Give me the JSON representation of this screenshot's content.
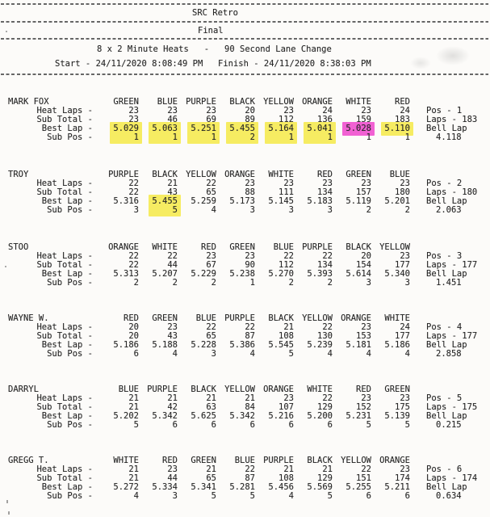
{
  "header": {
    "title": "SRC Retro",
    "subtitle": "Final",
    "format_line": "8 x 2 Minute Heats   -   90 Second Lane Change",
    "start_text": "Start - 24/11/2020 8:08:49 PM",
    "finish_text": "Finish - 24/11/2020 8:38:03 PM"
  },
  "row_labels": {
    "heat_laps": "Heat Laps -",
    "sub_total": "Sub Total -",
    "best_lap": "Best Lap -",
    "sub_pos": "Sub Pos -"
  },
  "highlight_colors": {
    "yellow": "#f6ec62",
    "pink": "#f161d3"
  },
  "racers": [
    {
      "name": "MARK FOX",
      "colors": [
        "GREEN",
        "BLUE",
        "PURPLE",
        "BLACK",
        "YELLOW",
        "ORANGE",
        "WHITE",
        "RED"
      ],
      "heat_laps": [
        "23",
        "23",
        "23",
        "20",
        "23",
        "24",
        "23",
        "24"
      ],
      "sub_total": [
        "23",
        "46",
        "69",
        "89",
        "112",
        "136",
        "159",
        "183"
      ],
      "best_lap": [
        "5.029",
        "5.063",
        "5.251",
        "5.455",
        "5.164",
        "5.041",
        "5.028",
        "5.110"
      ],
      "sub_pos": [
        "1",
        "1",
        "1",
        "2",
        "1",
        "1",
        "1",
        "1"
      ],
      "pos_text": "Pos - 1",
      "laps_text": "Laps - 183",
      "bell_lap_label": "Bell Lap",
      "bell_lap_value": "4.118",
      "best_lap_highlight": [
        "yellow-bleed",
        "yellow-bleed",
        "yellow-bleed",
        "yellow-bleed",
        "yellow-bleed",
        "yellow-bleed",
        "pink",
        "yellow"
      ]
    },
    {
      "name": "TROY",
      "colors": [
        "PURPLE",
        "BLACK",
        "YELLOW",
        "ORANGE",
        "WHITE",
        "RED",
        "GREEN",
        "BLUE"
      ],
      "heat_laps": [
        "22",
        "21",
        "22",
        "23",
        "23",
        "23",
        "23",
        "23"
      ],
      "sub_total": [
        "22",
        "43",
        "65",
        "88",
        "111",
        "134",
        "157",
        "180"
      ],
      "best_lap": [
        "5.316",
        "5.455",
        "5.259",
        "5.173",
        "5.145",
        "5.183",
        "5.119",
        "5.201"
      ],
      "sub_pos": [
        "3",
        "5",
        "4",
        "3",
        "3",
        "3",
        "2",
        "2"
      ],
      "pos_text": "Pos - 2",
      "laps_text": "Laps - 180",
      "bell_lap_label": "Bell Lap",
      "bell_lap_value": "2.063",
      "best_lap_highlight": [
        null,
        "yellow-bleed",
        null,
        null,
        null,
        null,
        null,
        null
      ]
    },
    {
      "name": "STOO",
      "colors": [
        "ORANGE",
        "WHITE",
        "RED",
        "GREEN",
        "BLUE",
        "PURPLE",
        "BLACK",
        "YELLOW"
      ],
      "heat_laps": [
        "22",
        "22",
        "23",
        "23",
        "22",
        "22",
        "20",
        "23"
      ],
      "sub_total": [
        "22",
        "44",
        "67",
        "90",
        "112",
        "134",
        "154",
        "177"
      ],
      "best_lap": [
        "5.313",
        "5.207",
        "5.229",
        "5.238",
        "5.270",
        "5.393",
        "5.614",
        "5.340"
      ],
      "sub_pos": [
        "2",
        "2",
        "2",
        "1",
        "2",
        "2",
        "3",
        "3"
      ],
      "pos_text": "Pos - 3",
      "laps_text": "Laps - 177",
      "bell_lap_label": "Bell Lap",
      "bell_lap_value": "1.451",
      "best_lap_highlight": [
        null,
        null,
        null,
        null,
        null,
        null,
        null,
        null
      ]
    },
    {
      "name": "WAYNE W.",
      "colors": [
        "RED",
        "GREEN",
        "BLUE",
        "PURPLE",
        "BLACK",
        "YELLOW",
        "ORANGE",
        "WHITE"
      ],
      "heat_laps": [
        "20",
        "23",
        "22",
        "22",
        "21",
        "22",
        "23",
        "24"
      ],
      "sub_total": [
        "20",
        "43",
        "65",
        "87",
        "108",
        "130",
        "153",
        "177"
      ],
      "best_lap": [
        "5.186",
        "5.188",
        "5.228",
        "5.386",
        "5.545",
        "5.239",
        "5.181",
        "5.186"
      ],
      "sub_pos": [
        "6",
        "4",
        "3",
        "4",
        "5",
        "4",
        "4",
        "4"
      ],
      "pos_text": "Pos - 4",
      "laps_text": "Laps - 177",
      "bell_lap_label": "Bell Lap",
      "bell_lap_value": "2.858",
      "best_lap_highlight": [
        null,
        null,
        null,
        null,
        null,
        null,
        null,
        null
      ]
    },
    {
      "name": "DARRYL",
      "colors": [
        "BLUE",
        "PURPLE",
        "BLACK",
        "YELLOW",
        "ORANGE",
        "WHITE",
        "RED",
        "GREEN"
      ],
      "heat_laps": [
        "21",
        "21",
        "21",
        "21",
        "23",
        "22",
        "23",
        "23"
      ],
      "sub_total": [
        "21",
        "42",
        "63",
        "84",
        "107",
        "129",
        "152",
        "175"
      ],
      "best_lap": [
        "5.202",
        "5.342",
        "5.625",
        "5.342",
        "5.216",
        "5.200",
        "5.231",
        "5.139"
      ],
      "sub_pos": [
        "5",
        "6",
        "6",
        "6",
        "6",
        "6",
        "5",
        "5"
      ],
      "pos_text": "Pos - 5",
      "laps_text": "Laps - 175",
      "bell_lap_label": "Bell Lap",
      "bell_lap_value": "0.215",
      "best_lap_highlight": [
        null,
        null,
        null,
        null,
        null,
        null,
        null,
        null
      ]
    },
    {
      "name": "GREGG T.",
      "colors": [
        "WHITE",
        "RED",
        "GREEN",
        "BLUE",
        "PURPLE",
        "BLACK",
        "YELLOW",
        "ORANGE"
      ],
      "heat_laps": [
        "21",
        "23",
        "21",
        "22",
        "21",
        "21",
        "22",
        "23"
      ],
      "sub_total": [
        "21",
        "44",
        "65",
        "87",
        "108",
        "129",
        "151",
        "174"
      ],
      "best_lap": [
        "5.272",
        "5.334",
        "5.341",
        "5.281",
        "5.456",
        "5.569",
        "5.255",
        "5.211"
      ],
      "sub_pos": [
        "4",
        "3",
        "5",
        "5",
        "4",
        "5",
        "6",
        "6"
      ],
      "pos_text": "Pos - 6",
      "laps_text": "Laps - 174",
      "bell_lap_label": "Bell Lap",
      "bell_lap_value": "0.634",
      "best_lap_highlight": [
        null,
        null,
        null,
        null,
        null,
        null,
        null,
        null
      ]
    }
  ]
}
